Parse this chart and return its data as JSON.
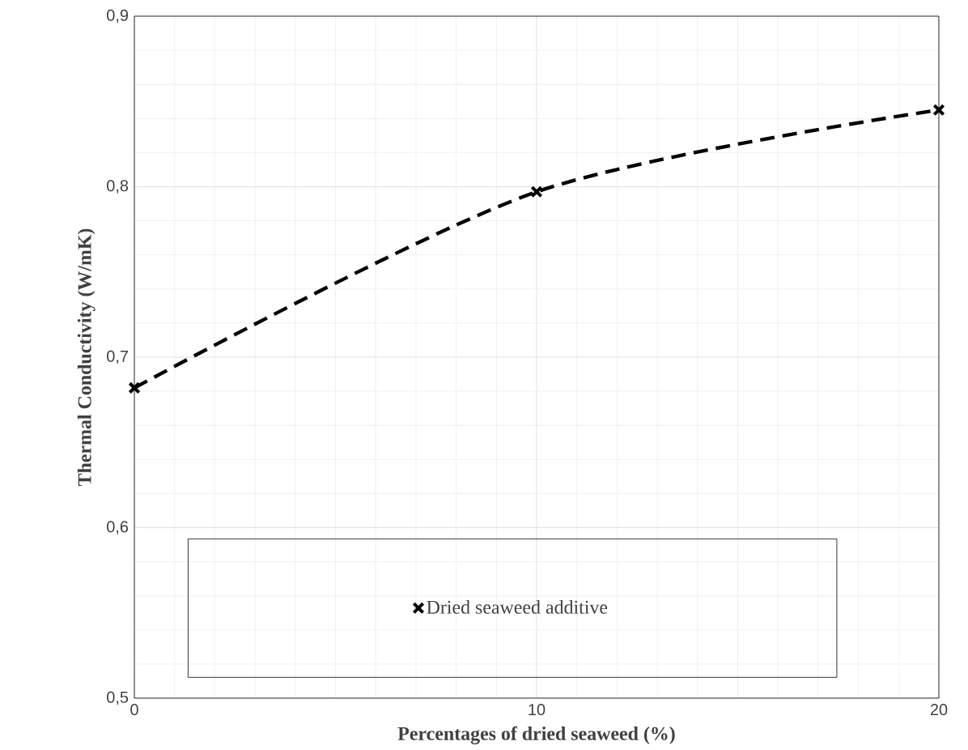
{
  "chart_data": {
    "type": "line",
    "xlabel": "Percentages of dried seaweed (%)",
    "ylabel": "Thermal Conductivity (W/mK)",
    "x": [
      0,
      10,
      20
    ],
    "series": [
      {
        "name": "Dried seaweed additive",
        "color": "#000000",
        "values": [
          0.682,
          0.797,
          0.845
        ]
      }
    ],
    "xlim": [
      0,
      20
    ],
    "xticks": [
      0,
      10,
      20
    ],
    "ylim": [
      0.5,
      0.9
    ],
    "yticks": [
      {
        "value": 0.5,
        "label": "0,5"
      },
      {
        "value": 0.6,
        "label": "0,6"
      },
      {
        "value": 0.7,
        "label": "0,7"
      },
      {
        "value": 0.8,
        "label": "0,8"
      },
      {
        "value": 0.9,
        "label": "0,9"
      }
    ],
    "grid": true,
    "legend": "bottom",
    "marker": "cross",
    "line_style": "dashed"
  }
}
